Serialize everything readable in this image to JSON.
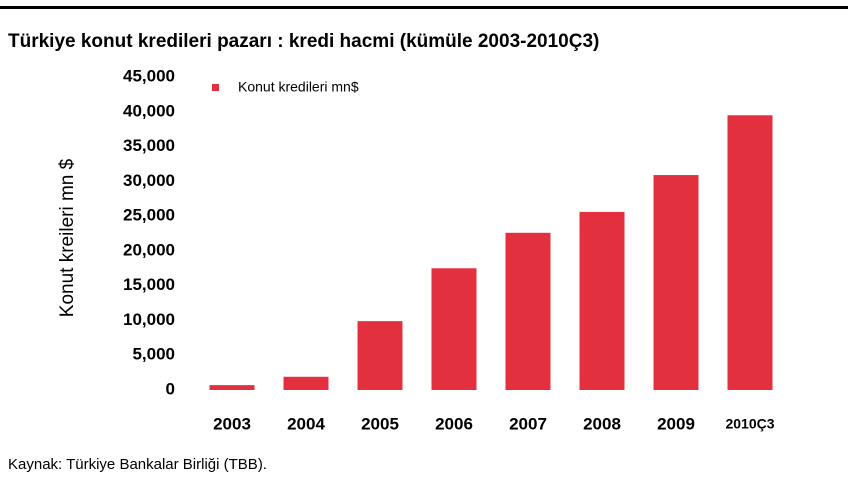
{
  "chart_data": {
    "type": "bar",
    "title": "Türkiye konut kredileri pazarı : kredi hacmi (kümüle 2003-2010Ç3)",
    "y_label": "Konut kreileri mn $",
    "source": "Kaynak: Türkiye Bankalar Birliği (TBB).",
    "categories": [
      "2003",
      "2004",
      "2005",
      "2006",
      "2007",
      "2008",
      "2009",
      "2010Ç3"
    ],
    "series": [
      {
        "name": "Konut kredileri  mn$",
        "color": "#e3303f",
        "values": [
          700,
          1900,
          9900,
          17500,
          22600,
          25600,
          30900,
          39500
        ]
      }
    ],
    "ylim": [
      0,
      45000
    ],
    "yticks": [
      {
        "value": 0,
        "label": "0"
      },
      {
        "value": 5000,
        "label": "5,000"
      },
      {
        "value": 10000,
        "label": "10,000"
      },
      {
        "value": 15000,
        "label": "15,000"
      },
      {
        "value": 20000,
        "label": "20,000"
      },
      {
        "value": 25000,
        "label": "25,000"
      },
      {
        "value": 30000,
        "label": "30,000"
      },
      {
        "value": 35000,
        "label": "35,000"
      },
      {
        "value": 40000,
        "label": "40,000"
      },
      {
        "value": 45000,
        "label": "45,000"
      }
    ],
    "grid": false
  }
}
